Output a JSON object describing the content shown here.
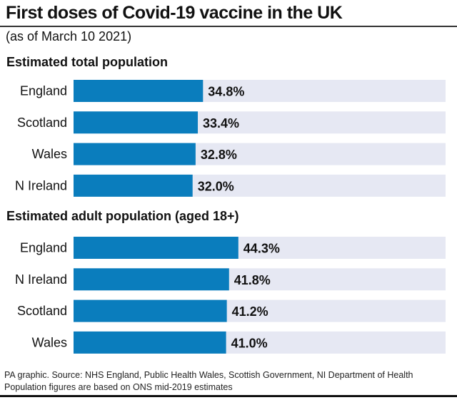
{
  "chart_data": {
    "type": "bar",
    "orientation": "horizontal",
    "title": "First doses of Covid-19 vaccine in the UK",
    "subtitle": "(as of March 10 2021)",
    "xlim": [
      0,
      100
    ],
    "unit": "%",
    "panels": [
      {
        "title": "Estimated total population",
        "categories": [
          "England",
          "Scotland",
          "Wales",
          "N Ireland"
        ],
        "values": [
          34.8,
          33.4,
          32.8,
          32.0
        ],
        "labels": [
          "34.8%",
          "33.4%",
          "32.8%",
          "32.0%"
        ]
      },
      {
        "title": "Estimated adult population (aged 18+)",
        "categories": [
          "England",
          "N Ireland",
          "Scotland",
          "Wales"
        ],
        "values": [
          44.3,
          41.8,
          41.2,
          41.0
        ],
        "labels": [
          "44.3%",
          "41.8%",
          "41.2%",
          "41.0%"
        ]
      }
    ],
    "colors": {
      "bar": "#0a7dbd",
      "track": "#e6e8f3"
    },
    "grid": false
  },
  "footer": {
    "source": "PA graphic. Source: NHS England, Public Health Wales, Scottish Government, NI Department of Health",
    "note": "Population figures are based on ONS mid-2019 estimates"
  }
}
